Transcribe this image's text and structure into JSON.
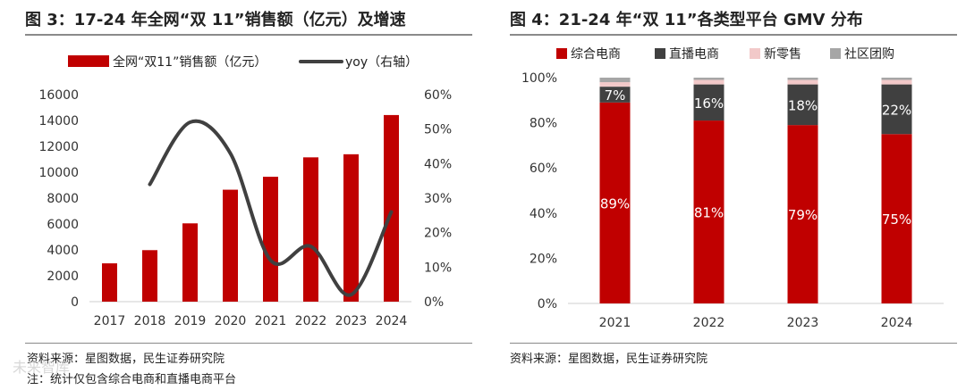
{
  "left": {
    "title": "图 3：17-24 年全网“双 11”销售额（亿元）及增速",
    "source": "资料来源：星图数据，民生证券研究院",
    "note": "注：统计仅包含综合电商和直播电商平台",
    "watermark": "未来智库"
  },
  "right": {
    "title": "图 4：21-24 年“双 11”各类型平台 GMV 分布",
    "source": "资料来源：星图数据，民生证券研究院"
  },
  "chart_data": [
    {
      "type": "bar",
      "categories": [
        "2017",
        "2018",
        "2019",
        "2020",
        "2021",
        "2022",
        "2023",
        "2024"
      ],
      "series": [
        {
          "name": "全网“双11”销售额（亿元）",
          "type": "bar",
          "axis": "left",
          "values": [
            2960,
            3980,
            6050,
            8650,
            9650,
            11150,
            11390,
            14420
          ]
        },
        {
          "name": "yoy（右轴）",
          "type": "line",
          "axis": "right",
          "values": [
            null,
            34,
            52,
            43,
            12,
            16,
            2,
            26
          ]
        }
      ],
      "ylim": [
        0,
        16000
      ],
      "yticks": [
        "0",
        "2000",
        "4000",
        "6000",
        "8000",
        "10000",
        "12000",
        "14000",
        "16000"
      ],
      "y2lim": [
        0,
        60
      ],
      "y2ticks": [
        "0%",
        "10%",
        "20%",
        "30%",
        "40%",
        "50%",
        "60%"
      ],
      "legend": "top",
      "colors": {
        "bar": "#c00000",
        "line": "#404040"
      }
    },
    {
      "type": "bar",
      "stacked": true,
      "categories": [
        "2021",
        "2022",
        "2023",
        "2024"
      ],
      "series": [
        {
          "name": "综合电商",
          "values": [
            89,
            81,
            79,
            75
          ],
          "labels": [
            "89%",
            "81%",
            "79%",
            "75%"
          ],
          "color": "#c00000"
        },
        {
          "name": "直播电商",
          "values": [
            7,
            16,
            18,
            22
          ],
          "labels": [
            "7%",
            "16%",
            "18%",
            "22%"
          ],
          "color": "#404040"
        },
        {
          "name": "新零售",
          "values": [
            2,
            2,
            2,
            2
          ],
          "color": "#f2c9c9"
        },
        {
          "name": "社区团购",
          "values": [
            2,
            1,
            1,
            1
          ],
          "color": "#a6a6a6"
        }
      ],
      "ylim": [
        0,
        100
      ],
      "yticks": [
        "0%",
        "20%",
        "40%",
        "60%",
        "80%",
        "100%"
      ],
      "legend": "top"
    }
  ]
}
